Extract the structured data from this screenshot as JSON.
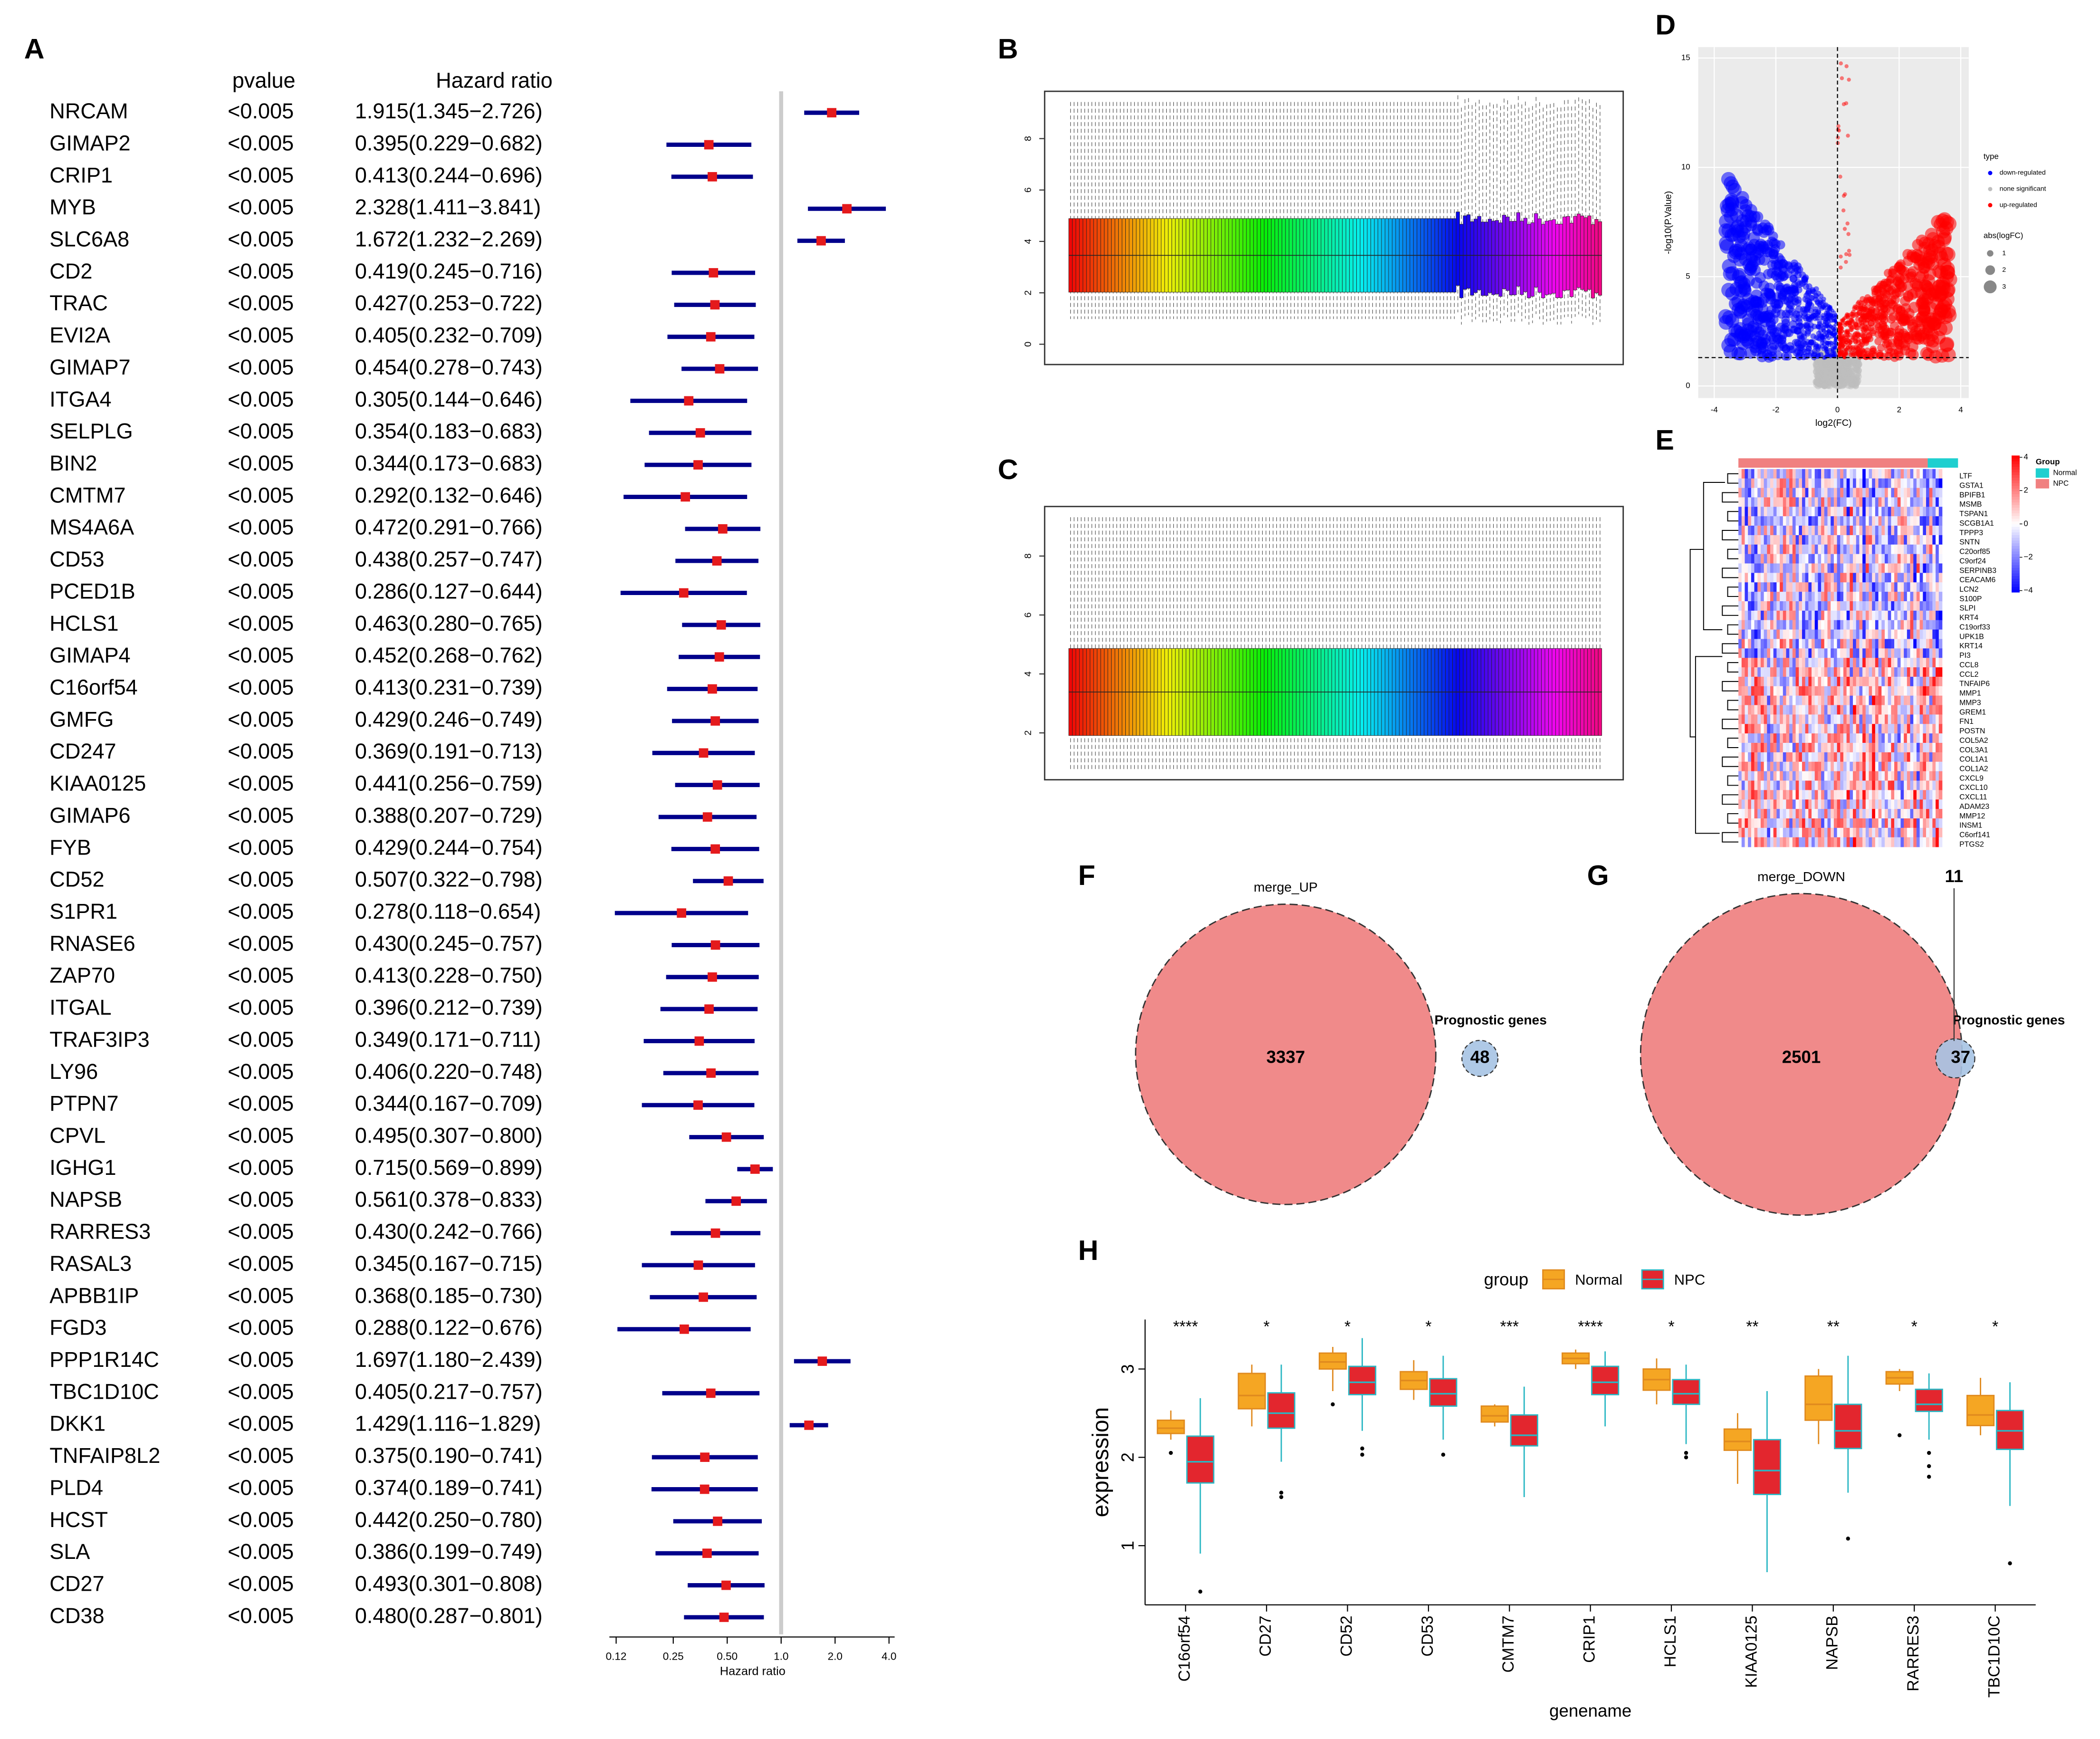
{
  "chart_data": [
    {
      "type": "forest",
      "panel": "A",
      "column_headers": [
        "pvalue",
        "Hazard ratio"
      ],
      "genes": [
        "NRCAM",
        "GIMAP2",
        "CRIP1",
        "MYB",
        "SLC6A8",
        "CD2",
        "TRAC",
        "EVI2A",
        "GIMAP7",
        "ITGA4",
        "SELPLG",
        "BIN2",
        "CMTM7",
        "MS4A6A",
        "CD53",
        "PCED1B",
        "HCLS1",
        "GIMAP4",
        "C16orf54",
        "GMFG",
        "CD247",
        "KIAA0125",
        "GIMAP6",
        "FYB",
        "CD52",
        "S1PR1",
        "RNASE6",
        "ZAP70",
        "ITGAL",
        "TRAF3IP3",
        "LY96",
        "PTPN7",
        "CPVL",
        "IGHG1",
        "NAPSB",
        "RARRES3",
        "RASAL3",
        "APBB1IP",
        "FGD3",
        "PPP1R14C",
        "TBC1D10C",
        "DKK1",
        "TNFAIP8L2",
        "PLD4",
        "HCST",
        "SLA",
        "CD27",
        "CD38"
      ],
      "pvalues": [
        "<0.005",
        "<0.005",
        "<0.005",
        "<0.005",
        "<0.005",
        "<0.005",
        "<0.005",
        "<0.005",
        "<0.005",
        "<0.005",
        "<0.005",
        "<0.005",
        "<0.005",
        "<0.005",
        "<0.005",
        "<0.005",
        "<0.005",
        "<0.005",
        "<0.005",
        "<0.005",
        "<0.005",
        "<0.005",
        "<0.005",
        "<0.005",
        "<0.005",
        "<0.005",
        "<0.005",
        "<0.005",
        "<0.005",
        "<0.005",
        "<0.005",
        "<0.005",
        "<0.005",
        "<0.005",
        "<0.005",
        "<0.005",
        "<0.005",
        "<0.005",
        "<0.005",
        "<0.005",
        "<0.005",
        "<0.005",
        "<0.005",
        "<0.005",
        "<0.005",
        "<0.005",
        "<0.005",
        "<0.005"
      ],
      "hr": [
        1.915,
        0.395,
        0.413,
        2.328,
        1.672,
        0.419,
        0.427,
        0.405,
        0.454,
        0.305,
        0.354,
        0.344,
        0.292,
        0.472,
        0.438,
        0.286,
        0.463,
        0.452,
        0.413,
        0.429,
        0.369,
        0.441,
        0.388,
        0.429,
        0.507,
        0.278,
        0.43,
        0.413,
        0.396,
        0.349,
        0.406,
        0.344,
        0.495,
        0.715,
        0.561,
        0.43,
        0.345,
        0.368,
        0.288,
        1.697,
        0.405,
        1.429,
        0.375,
        0.374,
        0.442,
        0.386,
        0.493,
        0.48
      ],
      "lower": [
        1.345,
        0.229,
        0.244,
        1.411,
        1.232,
        0.245,
        0.253,
        0.232,
        0.278,
        0.144,
        0.183,
        0.173,
        0.132,
        0.291,
        0.257,
        0.127,
        0.28,
        0.268,
        0.231,
        0.246,
        0.191,
        0.256,
        0.207,
        0.244,
        0.322,
        0.118,
        0.245,
        0.228,
        0.212,
        0.171,
        0.22,
        0.167,
        0.307,
        0.569,
        0.378,
        0.242,
        0.167,
        0.185,
        0.122,
        1.18,
        0.217,
        1.116,
        0.19,
        0.189,
        0.25,
        0.199,
        0.301,
        0.287
      ],
      "upper": [
        2.726,
        0.682,
        0.696,
        3.841,
        2.269,
        0.716,
        0.722,
        0.709,
        0.743,
        0.646,
        0.683,
        0.683,
        0.646,
        0.766,
        0.747,
        0.644,
        0.765,
        0.762,
        0.739,
        0.749,
        0.713,
        0.759,
        0.729,
        0.754,
        0.798,
        0.654,
        0.757,
        0.75,
        0.739,
        0.711,
        0.748,
        0.709,
        0.8,
        0.899,
        0.833,
        0.766,
        0.715,
        0.73,
        0.676,
        2.439,
        0.757,
        1.829,
        0.741,
        0.741,
        0.78,
        0.749,
        0.808,
        0.801
      ],
      "hr_labels": [
        "1.915(1.345−2.726)",
        "0.395(0.229−0.682)",
        "0.413(0.244−0.696)",
        "2.328(1.411−3.841)",
        "1.672(1.232−2.269)",
        "0.419(0.245−0.716)",
        "0.427(0.253−0.722)",
        "0.405(0.232−0.709)",
        "0.454(0.278−0.743)",
        "0.305(0.144−0.646)",
        "0.354(0.183−0.683)",
        "0.344(0.173−0.683)",
        "0.292(0.132−0.646)",
        "0.472(0.291−0.766)",
        "0.438(0.257−0.747)",
        "0.286(0.127−0.644)",
        "0.463(0.280−0.765)",
        "0.452(0.268−0.762)",
        "0.413(0.231−0.739)",
        "0.429(0.246−0.749)",
        "0.369(0.191−0.713)",
        "0.441(0.256−0.759)",
        "0.388(0.207−0.729)",
        "0.429(0.244−0.754)",
        "0.507(0.322−0.798)",
        "0.278(0.118−0.654)",
        "0.430(0.245−0.757)",
        "0.413(0.228−0.750)",
        "0.396(0.212−0.739)",
        "0.349(0.171−0.711)",
        "0.406(0.220−0.748)",
        "0.344(0.167−0.709)",
        "0.495(0.307−0.800)",
        "0.715(0.569−0.899)",
        "0.561(0.378−0.833)",
        "0.430(0.242−0.766)",
        "0.345(0.167−0.715)",
        "0.368(0.185−0.730)",
        "0.288(0.122−0.676)",
        "1.697(1.180−2.439)",
        "0.405(0.217−0.757)",
        "1.429(1.116−1.829)",
        "0.375(0.190−0.741)",
        "0.374(0.189−0.741)",
        "0.442(0.250−0.780)",
        "0.386(0.199−0.749)",
        "0.493(0.301−0.808)",
        "0.480(0.287−0.801)"
      ],
      "xlabel": "Hazard ratio",
      "log_x": true,
      "xlim": [
        0.11,
        4.3
      ],
      "xticks": [
        0.12,
        0.25,
        {
          "value": 0.5,
          "label": "0.50"
        },
        {
          "value": 1,
          "label": "1.0"
        },
        {
          "value": 2,
          "label": "2.0"
        },
        {
          "value": 4,
          "label": "4.0"
        }
      ],
      "reference_line": 1,
      "point_color": "#e41a1c",
      "line_color": "#00008b"
    },
    {
      "type": "sample_boxplot",
      "panel": "B",
      "ylim": [
        -0.79,
        9.84
      ],
      "yticks": [
        0,
        2,
        4,
        6,
        8
      ]
    },
    {
      "type": "sample_boxplot",
      "panel": "C",
      "ylim": [
        0.41,
        9.68
      ],
      "yticks": [
        2,
        4,
        6,
        8
      ]
    },
    {
      "type": "volcano",
      "panel": "D",
      "xlabel": "log2(FC)",
      "ylabel": "-log10(P.Value)",
      "xlim": [
        -4.52,
        4.26
      ],
      "ylim": [
        -0.55,
        15.5
      ],
      "xticks": [
        {
          "value": -4,
          "label": "-4"
        },
        {
          "value": -2,
          "label": "-2"
        },
        0,
        2,
        4
      ],
      "yticks": [
        0,
        5,
        10,
        15
      ],
      "vline": 0,
      "hline": 1.3,
      "grid": true,
      "legend_title": "type",
      "series": [
        {
          "name": "down-regulated",
          "color": "#0000ff"
        },
        {
          "name": "none significant",
          "color": "#bebebe"
        },
        {
          "name": "up-regulated",
          "color": "#ff0000"
        }
      ],
      "size_legend_title": "abs(logFC)",
      "size_legend": [
        1,
        2,
        3
      ]
    },
    {
      "type": "heatmap",
      "panel": "E",
      "genes": [
        "LTF",
        "GSTA1",
        "BPIFB1",
        "MSMB",
        "TSPAN1",
        "SCGB1A1",
        "TPPP3",
        "SNTN",
        "C20orf85",
        "C9orf24",
        "SERPINB3",
        "CEACAM6",
        "LCN2",
        "S100P",
        "SLPI",
        "KRT4",
        "C19orf33",
        "UPK1B",
        "KRT14",
        "PI3",
        "CCL8",
        "CCL2",
        "TNFAIP6",
        "MMP1",
        "MMP3",
        "GREM1",
        "FN1",
        "POSTN",
        "COL5A2",
        "COL3A1",
        "COL1A1",
        "COL1A2",
        "CXCL9",
        "CXCL10",
        "CXCL11",
        "ADAM23",
        "MMP12",
        "INSM1",
        "C6orf141",
        "PTGS2"
      ],
      "color_lim": [
        -4.1,
        4.1
      ],
      "color_ticks": [
        4,
        2,
        0,
        {
          "value": -2,
          "label": "−2"
        },
        {
          "value": -4,
          "label": "−4"
        }
      ],
      "colors": [
        "#0000ff",
        "#ffffff",
        "#ff0000"
      ],
      "group_legend_title": "Group",
      "groups": [
        {
          "name": "Normal",
          "color": "#1fcfcf"
        },
        {
          "name": "NPC",
          "color": "#f08080"
        }
      ]
    },
    {
      "type": "venn",
      "panel": "F",
      "sets": [
        {
          "name": "merge_UP",
          "size": 3337,
          "color": "#f08a8a"
        },
        {
          "name": "Prognostic genes",
          "size": 48,
          "color": "#a6c3e3"
        }
      ]
    },
    {
      "type": "venn",
      "panel": "G",
      "sets": [
        {
          "name": "merge_DOWN",
          "size": 2501,
          "color": "#f08a8a"
        },
        {
          "name": "Prognostic genes",
          "size": 37,
          "color": "#a6c3e3"
        }
      ],
      "intersection": 11
    },
    {
      "type": "boxplot",
      "panel": "H",
      "legend_title": "group",
      "xlabel": "genename",
      "ylabel": "expression",
      "categories": [
        "C16orf54",
        "CD27",
        "CD52",
        "CD53",
        "CMTM7",
        "CRIP1",
        "HCLS1",
        "KIAA0125",
        "NAPSB",
        "RARRES3",
        "TBC1D10C"
      ],
      "significance": [
        "****",
        "*",
        "*",
        "*",
        "***",
        "****",
        "*",
        "**",
        "**",
        "*",
        "*"
      ],
      "ylim": [
        0.33,
        3.56
      ],
      "yticks": [
        1,
        2,
        3
      ],
      "series": [
        {
          "name": "Normal",
          "color": "#f5a623",
          "edge_color": "#e08a1e",
          "q1": [
            2.27,
            2.55,
            3.0,
            2.77,
            2.4,
            3.06,
            2.76,
            2.08,
            2.42,
            2.83,
            2.36
          ],
          "median": [
            2.33,
            2.7,
            3.08,
            2.87,
            2.47,
            3.12,
            2.88,
            2.18,
            2.6,
            2.9,
            2.48
          ],
          "q3": [
            2.42,
            2.95,
            3.18,
            2.97,
            2.58,
            3.18,
            3.0,
            2.32,
            2.92,
            2.97,
            2.7
          ],
          "whisker_low": [
            2.2,
            2.35,
            2.75,
            2.65,
            2.35,
            3.0,
            2.6,
            1.7,
            2.15,
            2.75,
            2.25
          ],
          "whisker_high": [
            2.53,
            3.05,
            3.25,
            3.1,
            2.6,
            3.22,
            3.12,
            2.5,
            3.0,
            3.0,
            2.9
          ],
          "outliers": [
            [
              2.05
            ],
            [],
            [
              2.6
            ],
            [],
            [],
            [],
            [],
            [],
            [],
            [
              2.25
            ],
            []
          ]
        },
        {
          "name": "NPC",
          "color": "#e3262e",
          "edge_color": "#2ab7c4",
          "q1": [
            1.71,
            2.33,
            2.71,
            2.58,
            2.13,
            2.71,
            2.6,
            1.58,
            2.1,
            2.52,
            2.09
          ],
          "median": [
            1.95,
            2.5,
            2.85,
            2.72,
            2.25,
            2.85,
            2.72,
            1.85,
            2.3,
            2.6,
            2.3
          ],
          "q3": [
            2.24,
            2.73,
            3.03,
            2.89,
            2.48,
            3.03,
            2.88,
            2.2,
            2.6,
            2.77,
            2.53
          ],
          "whisker_low": [
            0.91,
            1.95,
            2.3,
            2.2,
            1.55,
            2.35,
            2.15,
            0.7,
            1.6,
            2.2,
            1.45
          ],
          "whisker_high": [
            2.67,
            3.05,
            3.35,
            3.15,
            2.8,
            3.2,
            3.05,
            2.75,
            3.15,
            2.95,
            2.85
          ],
          "outliers": [
            [
              0.48
            ],
            [
              1.6,
              1.55
            ],
            [
              2.1,
              2.03
            ],
            [
              2.03
            ],
            [],
            [],
            [
              2.05,
              2.0
            ],
            [],
            [
              1.08
            ],
            [
              2.05,
              1.9,
              1.78
            ],
            [
              0.8
            ]
          ]
        }
      ]
    }
  ]
}
